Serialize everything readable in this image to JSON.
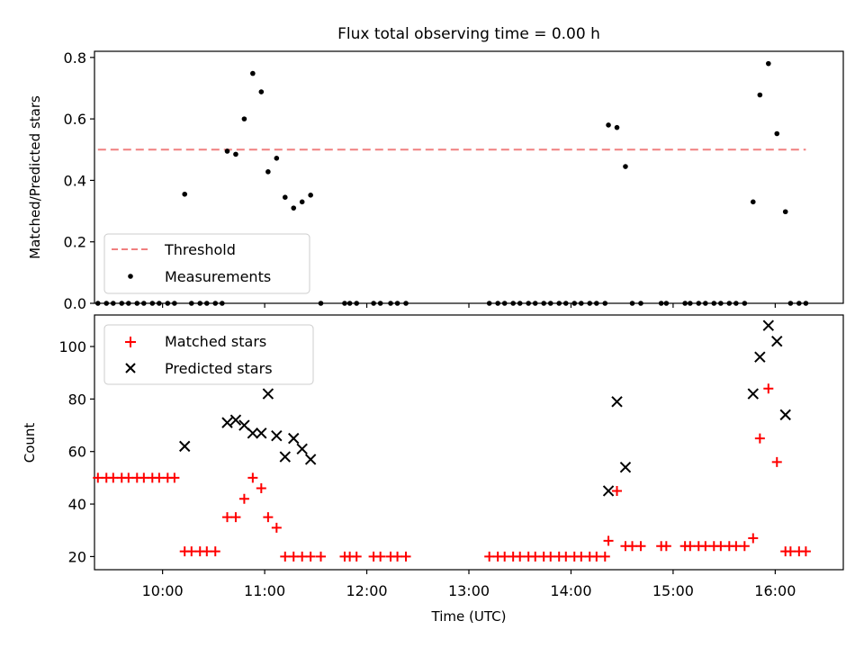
{
  "figure_title": "Flux total observing time = 0.00 h",
  "colors": {
    "threshold": "#f08080",
    "measurement": "#000000",
    "matched": "#ff0000",
    "predicted": "#000000"
  },
  "chart_data": [
    {
      "type": "scatter",
      "ylabel": "Matched/Predicted stars",
      "xlabel": "",
      "xlim": [
        "09:20",
        "16:40"
      ],
      "ylim": [
        0,
        0.82
      ],
      "x_ticks": [
        "10:00",
        "11:00",
        "12:00",
        "13:00",
        "14:00",
        "15:00",
        "16:00"
      ],
      "y_ticks": [
        0.0,
        0.2,
        0.4,
        0.6,
        0.8
      ],
      "y_tick_labels": [
        "0.0",
        "0.2",
        "0.4",
        "0.6",
        "0.8"
      ],
      "legend_position": "lower-left",
      "series": [
        {
          "name": "Threshold",
          "kind": "dashed-line",
          "x": [
            "09:22",
            "16:18"
          ],
          "y": [
            0.5,
            0.5
          ]
        },
        {
          "name": "Measurements",
          "kind": "dots",
          "points": [
            [
              "09:22",
              0.0
            ],
            [
              "09:27",
              0.0
            ],
            [
              "09:31",
              0.0
            ],
            [
              "09:36",
              0.0
            ],
            [
              "09:40",
              0.0
            ],
            [
              "09:45",
              0.0
            ],
            [
              "09:49",
              0.0
            ],
            [
              "09:54",
              0.0
            ],
            [
              "09:58",
              0.0
            ],
            [
              "10:03",
              0.0
            ],
            [
              "10:07",
              0.0
            ],
            [
              "10:13",
              0.355
            ],
            [
              "10:17",
              0.0
            ],
            [
              "10:22",
              0.0
            ],
            [
              "10:26",
              0.0
            ],
            [
              "10:31",
              0.0
            ],
            [
              "10:35",
              0.0
            ],
            [
              "10:38",
              0.495
            ],
            [
              "10:43",
              0.485
            ],
            [
              "10:48",
              0.6
            ],
            [
              "10:53",
              0.748
            ],
            [
              "10:58",
              0.688
            ],
            [
              "11:02",
              0.428
            ],
            [
              "11:07",
              0.472
            ],
            [
              "11:12",
              0.345
            ],
            [
              "11:17",
              0.31
            ],
            [
              "11:22",
              0.33
            ],
            [
              "11:27",
              0.352
            ],
            [
              "11:33",
              0.0
            ],
            [
              "11:47",
              0.0
            ],
            [
              "11:50",
              0.0
            ],
            [
              "11:54",
              0.0
            ],
            [
              "12:04",
              0.0
            ],
            [
              "12:08",
              0.0
            ],
            [
              "12:14",
              0.0
            ],
            [
              "12:18",
              0.0
            ],
            [
              "12:23",
              0.0
            ],
            [
              "13:12",
              0.0
            ],
            [
              "13:17",
              0.0
            ],
            [
              "13:21",
              0.0
            ],
            [
              "13:26",
              0.0
            ],
            [
              "13:30",
              0.0
            ],
            [
              "13:35",
              0.0
            ],
            [
              "13:39",
              0.0
            ],
            [
              "13:44",
              0.0
            ],
            [
              "13:48",
              0.0
            ],
            [
              "13:53",
              0.0
            ],
            [
              "13:57",
              0.0
            ],
            [
              "14:02",
              0.0
            ],
            [
              "14:06",
              0.0
            ],
            [
              "14:11",
              0.0
            ],
            [
              "14:15",
              0.0
            ],
            [
              "14:20",
              0.0
            ],
            [
              "14:22",
              0.58
            ],
            [
              "14:27",
              0.572
            ],
            [
              "14:32",
              0.445
            ],
            [
              "14:36",
              0.0
            ],
            [
              "14:41",
              0.0
            ],
            [
              "14:53",
              0.0
            ],
            [
              "14:56",
              0.0
            ],
            [
              "15:07",
              0.0
            ],
            [
              "15:10",
              0.0
            ],
            [
              "15:15",
              0.0
            ],
            [
              "15:19",
              0.0
            ],
            [
              "15:24",
              0.0
            ],
            [
              "15:28",
              0.0
            ],
            [
              "15:33",
              0.0
            ],
            [
              "15:37",
              0.0
            ],
            [
              "15:42",
              0.0
            ],
            [
              "15:47",
              0.33
            ],
            [
              "15:51",
              0.678
            ],
            [
              "15:56",
              0.78
            ],
            [
              "16:01",
              0.552
            ],
            [
              "16:06",
              0.298
            ],
            [
              "16:09",
              0.0
            ],
            [
              "16:14",
              0.0
            ],
            [
              "16:18",
              0.0
            ]
          ]
        }
      ]
    },
    {
      "type": "scatter",
      "ylabel": "Count",
      "xlabel": "Time (UTC)",
      "xlim": [
        "09:20",
        "16:40"
      ],
      "ylim": [
        15,
        112
      ],
      "x_ticks": [
        "10:00",
        "11:00",
        "12:00",
        "13:00",
        "14:00",
        "15:00",
        "16:00"
      ],
      "x_tick_labels": [
        "10:00",
        "11:00",
        "12:00",
        "13:00",
        "14:00",
        "15:00",
        "16:00"
      ],
      "y_ticks": [
        20,
        40,
        60,
        80,
        100
      ],
      "y_tick_labels": [
        "20",
        "40",
        "60",
        "80",
        "100"
      ],
      "legend_position": "upper-left",
      "series": [
        {
          "name": "Matched stars",
          "marker": "plus",
          "points": [
            [
              "09:22",
              50
            ],
            [
              "09:27",
              50
            ],
            [
              "09:31",
              50
            ],
            [
              "09:36",
              50
            ],
            [
              "09:40",
              50
            ],
            [
              "09:45",
              50
            ],
            [
              "09:49",
              50
            ],
            [
              "09:54",
              50
            ],
            [
              "09:58",
              50
            ],
            [
              "10:03",
              50
            ],
            [
              "10:07",
              50
            ],
            [
              "10:13",
              22
            ],
            [
              "10:17",
              22
            ],
            [
              "10:22",
              22
            ],
            [
              "10:26",
              22
            ],
            [
              "10:31",
              22
            ],
            [
              "10:38",
              35
            ],
            [
              "10:43",
              35
            ],
            [
              "10:48",
              42
            ],
            [
              "10:53",
              50
            ],
            [
              "10:58",
              46
            ],
            [
              "11:02",
              35
            ],
            [
              "11:07",
              31
            ],
            [
              "11:12",
              20
            ],
            [
              "11:17",
              20
            ],
            [
              "11:22",
              20
            ],
            [
              "11:27",
              20
            ],
            [
              "11:33",
              20
            ],
            [
              "11:47",
              20
            ],
            [
              "11:50",
              20
            ],
            [
              "11:54",
              20
            ],
            [
              "12:04",
              20
            ],
            [
              "12:08",
              20
            ],
            [
              "12:14",
              20
            ],
            [
              "12:18",
              20
            ],
            [
              "12:23",
              20
            ],
            [
              "13:12",
              20
            ],
            [
              "13:17",
              20
            ],
            [
              "13:21",
              20
            ],
            [
              "13:26",
              20
            ],
            [
              "13:30",
              20
            ],
            [
              "13:35",
              20
            ],
            [
              "13:39",
              20
            ],
            [
              "13:44",
              20
            ],
            [
              "13:48",
              20
            ],
            [
              "13:53",
              20
            ],
            [
              "13:57",
              20
            ],
            [
              "14:02",
              20
            ],
            [
              "14:06",
              20
            ],
            [
              "14:11",
              20
            ],
            [
              "14:15",
              20
            ],
            [
              "14:20",
              20
            ],
            [
              "14:22",
              26
            ],
            [
              "14:27",
              45
            ],
            [
              "14:32",
              24
            ],
            [
              "14:36",
              24
            ],
            [
              "14:41",
              24
            ],
            [
              "14:53",
              24
            ],
            [
              "14:56",
              24
            ],
            [
              "15:07",
              24
            ],
            [
              "15:10",
              24
            ],
            [
              "15:15",
              24
            ],
            [
              "15:19",
              24
            ],
            [
              "15:24",
              24
            ],
            [
              "15:28",
              24
            ],
            [
              "15:33",
              24
            ],
            [
              "15:37",
              24
            ],
            [
              "15:42",
              24
            ],
            [
              "15:47",
              27
            ],
            [
              "15:51",
              65
            ],
            [
              "15:56",
              84
            ],
            [
              "16:01",
              56
            ],
            [
              "16:06",
              22
            ],
            [
              "16:09",
              22
            ],
            [
              "16:14",
              22
            ],
            [
              "16:18",
              22
            ]
          ]
        },
        {
          "name": "Predicted stars",
          "marker": "x",
          "points": [
            [
              "10:13",
              62
            ],
            [
              "10:38",
              71
            ],
            [
              "10:43",
              72
            ],
            [
              "10:48",
              70
            ],
            [
              "10:53",
              67
            ],
            [
              "10:58",
              67
            ],
            [
              "11:02",
              82
            ],
            [
              "11:07",
              66
            ],
            [
              "11:12",
              58
            ],
            [
              "11:17",
              65
            ],
            [
              "11:22",
              61
            ],
            [
              "11:27",
              57
            ],
            [
              "14:22",
              45
            ],
            [
              "14:27",
              79
            ],
            [
              "14:32",
              54
            ],
            [
              "15:47",
              82
            ],
            [
              "15:51",
              96
            ],
            [
              "15:56",
              108
            ],
            [
              "16:01",
              102
            ],
            [
              "16:06",
              74
            ]
          ]
        }
      ]
    }
  ]
}
